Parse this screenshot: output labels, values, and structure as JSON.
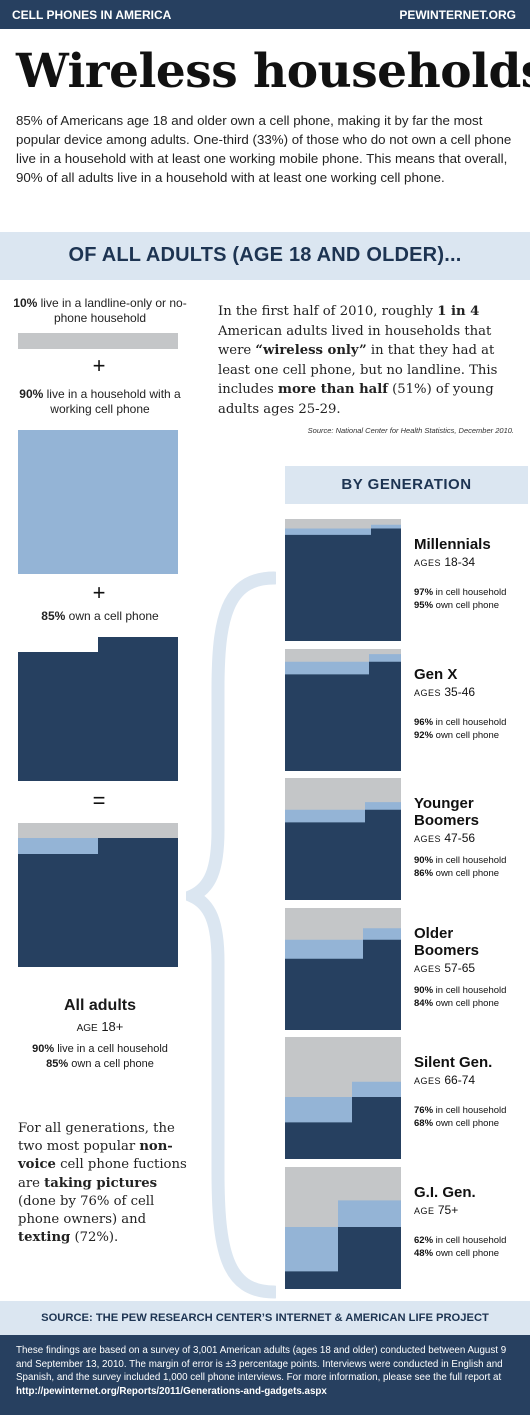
{
  "header": {
    "section_label": "CELL PHONES IN AMERICA",
    "site": "PEWINTERNET.ORG"
  },
  "title": "Wireless households",
  "intro": "85% of Americans age 18 and older own a cell phone, making it by far the most popular device among adults. One-third (33%) of those who do not own a cell phone live in a household with at least one working mobile phone. This means that overall, 90% of all adults live in a household with at least one working cell phone.",
  "band_title": "OF ALL ADULTS (AGE 18 AND OLDER)...",
  "left_column": {
    "landline": {
      "pct": "10%",
      "text": " live in a landline-only or no-phone household"
    },
    "plus1": "+",
    "household": {
      "pct": "90%",
      "text": " live in a household with a working cell phone"
    },
    "plus2": "+",
    "own": {
      "pct": "85%",
      "text": " own a cell phone"
    },
    "equals": "=",
    "all_adults": {
      "name": "All adults",
      "age_label": "AGE",
      "age": " 18+",
      "stat1_pct": "90%",
      "stat1_text": " live in a cell household",
      "stat2_pct": "85%",
      "stat2_text": " own a cell phone"
    }
  },
  "story": {
    "p1": "In the first half of 2010, roughly ",
    "b1": "1 in 4",
    "p2": " American adults lived in households that were ",
    "b2": "“wireless only”",
    "p3": " in that they had at least one cell phone, but no landline. This includes ",
    "b3": "more than half",
    "p4": " (51%) of young adults ages 25-29.",
    "source": "Source: National Center for Health Statistics, December 2010."
  },
  "generation_title": "BY GENERATION",
  "generations": [
    {
      "name1": "Millennials",
      "name2": "",
      "age_label": "AGES",
      "ages": " 18-34",
      "household_pct": "97%",
      "household_text": " in cell household",
      "own_pct": "95%",
      "own_text": " own cell phone",
      "household": 97,
      "own": 95
    },
    {
      "name1": "Gen X",
      "name2": "",
      "age_label": "AGES",
      "ages": " 35-46",
      "household_pct": "96%",
      "household_text": " in cell household",
      "own_pct": "92%",
      "own_text": " own cell phone",
      "household": 96,
      "own": 92
    },
    {
      "name1": "Younger",
      "name2": "Boomers",
      "age_label": "AGES",
      "ages": " 47-56",
      "household_pct": "90%",
      "household_text": " in cell household",
      "own_pct": "86%",
      "own_text": " own cell phone",
      "household": 90,
      "own": 86
    },
    {
      "name1": "Older",
      "name2": "Boomers",
      "age_label": "AGES",
      "ages": " 57-65",
      "household_pct": "90%",
      "household_text": " in cell household",
      "own_pct": "84%",
      "own_text": " own cell phone",
      "household": 90,
      "own": 84
    },
    {
      "name1": "Silent Gen.",
      "name2": "",
      "age_label": "AGES",
      "ages": " 66-74",
      "household_pct": "76%",
      "household_text": " in cell household",
      "own_pct": "68%",
      "own_text": " own cell phone",
      "household": 76,
      "own": 68
    },
    {
      "name1": "G.I. Gen.",
      "name2": "",
      "age_label": "AGE",
      "ages": " 75+",
      "household_pct": "62%",
      "household_text": " in cell household",
      "own_pct": "48%",
      "own_text": " own cell phone",
      "household": 62,
      "own": 48
    }
  ],
  "popular": {
    "p1": "For all generations, the two most popular ",
    "b1": "non-voice",
    "p2": " cell phone fuctions are ",
    "b2": "taking pictures",
    "p3": " (done by 76% of cell phone owners) and ",
    "b3": "texting",
    "p4": " (72%)."
  },
  "source_band": "SOURCE: THE PEW RESEARCH CENTER’S INTERNET & AMERICAN LIFE PROJECT",
  "footer": {
    "text": "These findings are based on a survey of 3,001 American adults (ages 18 and older) conducted between August 9 and September 13, 2010. The margin of error is ±3 percentage points. Interviews were conducted in English and Spanish, and the survey included 1,000 cell phone interviews. For more information, please see the full report at ",
    "url": "http://pewinternet.org/Reports/2011/Generations-and-gadgets.aspx"
  },
  "colors": {
    "navy": "#264060",
    "light_blue": "#94b4d6",
    "gray": "#c4c6c8",
    "band": "#dbe6f1"
  }
}
